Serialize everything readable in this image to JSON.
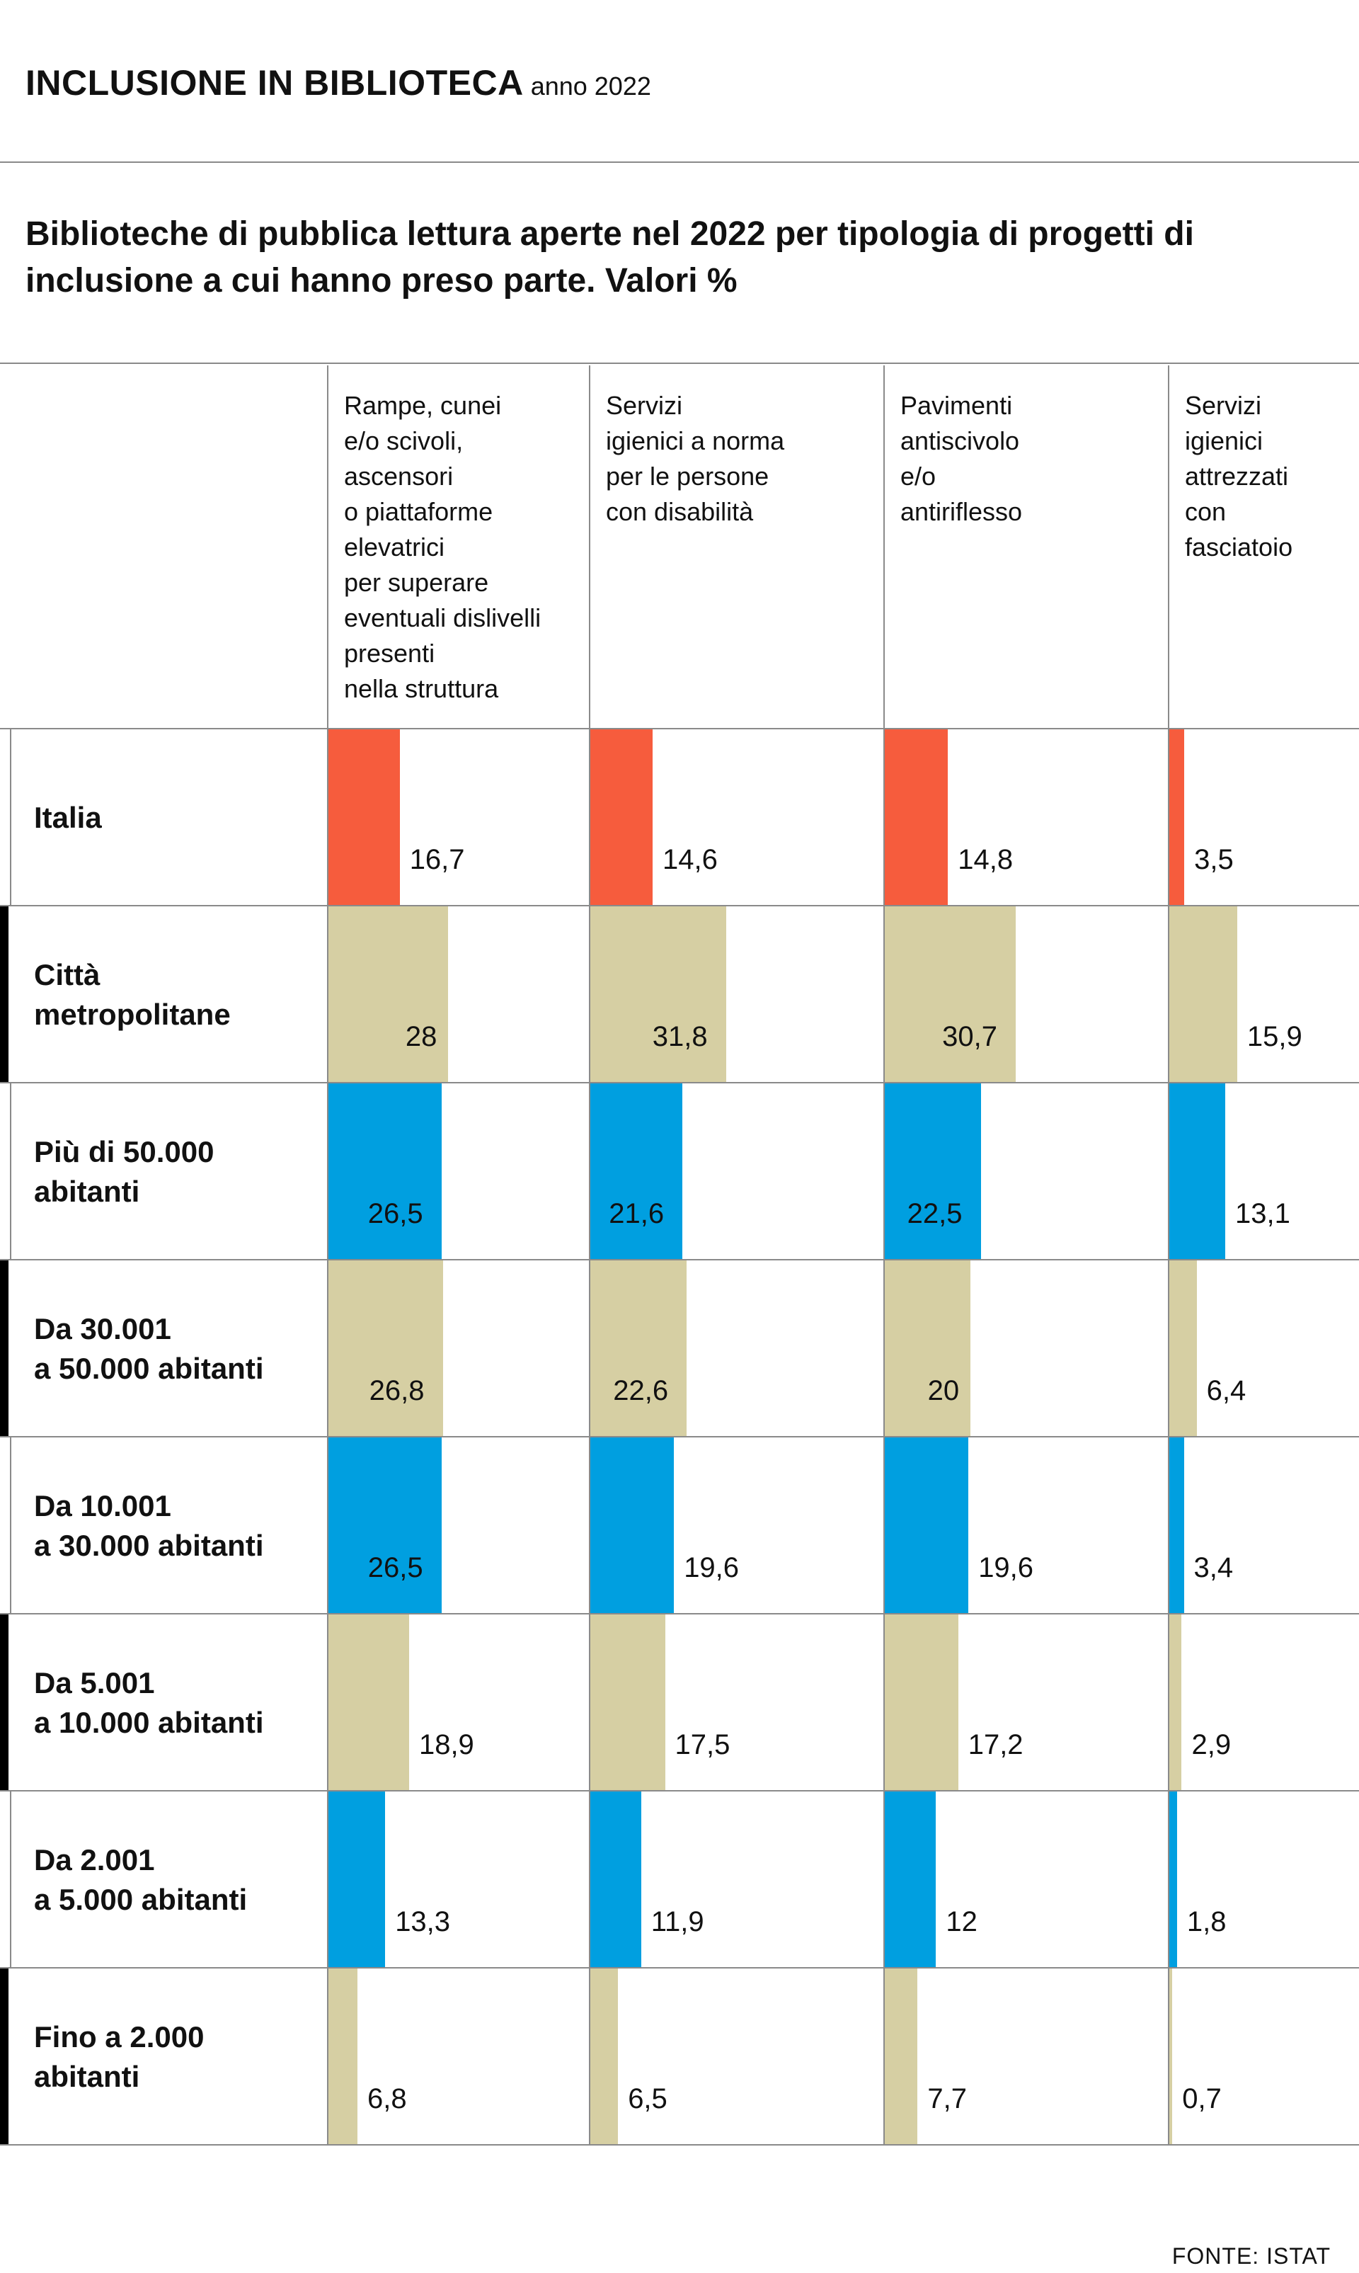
{
  "title": "INCLUSIONE IN BIBLIOTECA",
  "title_suffix": "anno 2022",
  "subtitle": "Biblioteche di pubblica lettura aperte nel 2022 per tipologia di progetti di inclusione a cui hanno preso parte. Valori %",
  "source": "FONTE: ISTAT",
  "colors": {
    "italia": "#f65c3d",
    "beige": "#d6cfa3",
    "blue": "#009fe0",
    "grid": "#8a8a8a",
    "accent": "#000000"
  },
  "chart_data": {
    "type": "bar",
    "title": "Biblioteche di pubblica lettura aperte nel 2022 per tipologia di progetti di inclusione a cui hanno preso parte. Valori %",
    "columns": [
      "Rampe, cunei\ne/o scivoli,\nascensori\no piattaforme\nelevatrici\nper superare\neventuali dislivelli\npresenti\nnella struttura",
      "Servizi\nigienici a norma\nper le persone\ncon disabilità",
      "Pavimenti\nantiscivolo\ne/o\nantiriflesso",
      "Servizi\nigienici\nattrezzati\ncon\nfasciatoio"
    ],
    "rows": [
      {
        "label": "Italia",
        "values": [
          "16,7",
          "14,6",
          "14,8",
          "3,5"
        ],
        "style": "italia"
      },
      {
        "label": "Città\nmetropolitane",
        "values": [
          "28",
          "31,8",
          "30,7",
          "15,9"
        ],
        "style": "beige"
      },
      {
        "label": "Più di 50.000\nabitanti",
        "values": [
          "26,5",
          "21,6",
          "22,5",
          "13,1"
        ],
        "style": "blue"
      },
      {
        "label": "Da 30.001\na 50.000 abitanti",
        "values": [
          "26,8",
          "22,6",
          "20",
          "6,4"
        ],
        "style": "beige"
      },
      {
        "label": "Da 10.001\na 30.000 abitanti",
        "values": [
          "26,5",
          "19,6",
          "19,6",
          "3,4"
        ],
        "style": "blue"
      },
      {
        "label": "Da 5.001\na 10.000 abitanti",
        "values": [
          "18,9",
          "17,5",
          "17,2",
          "2,9"
        ],
        "style": "beige"
      },
      {
        "label": "Da 2.001\na 5.000 abitanti",
        "values": [
          "13,3",
          "11,9",
          "12",
          "1,8"
        ],
        "style": "blue"
      },
      {
        "label": "Fino a 2.000\nabitanti",
        "values": [
          "6,8",
          "6,5",
          "7,7",
          "0,7"
        ],
        "style": "beige"
      }
    ]
  }
}
